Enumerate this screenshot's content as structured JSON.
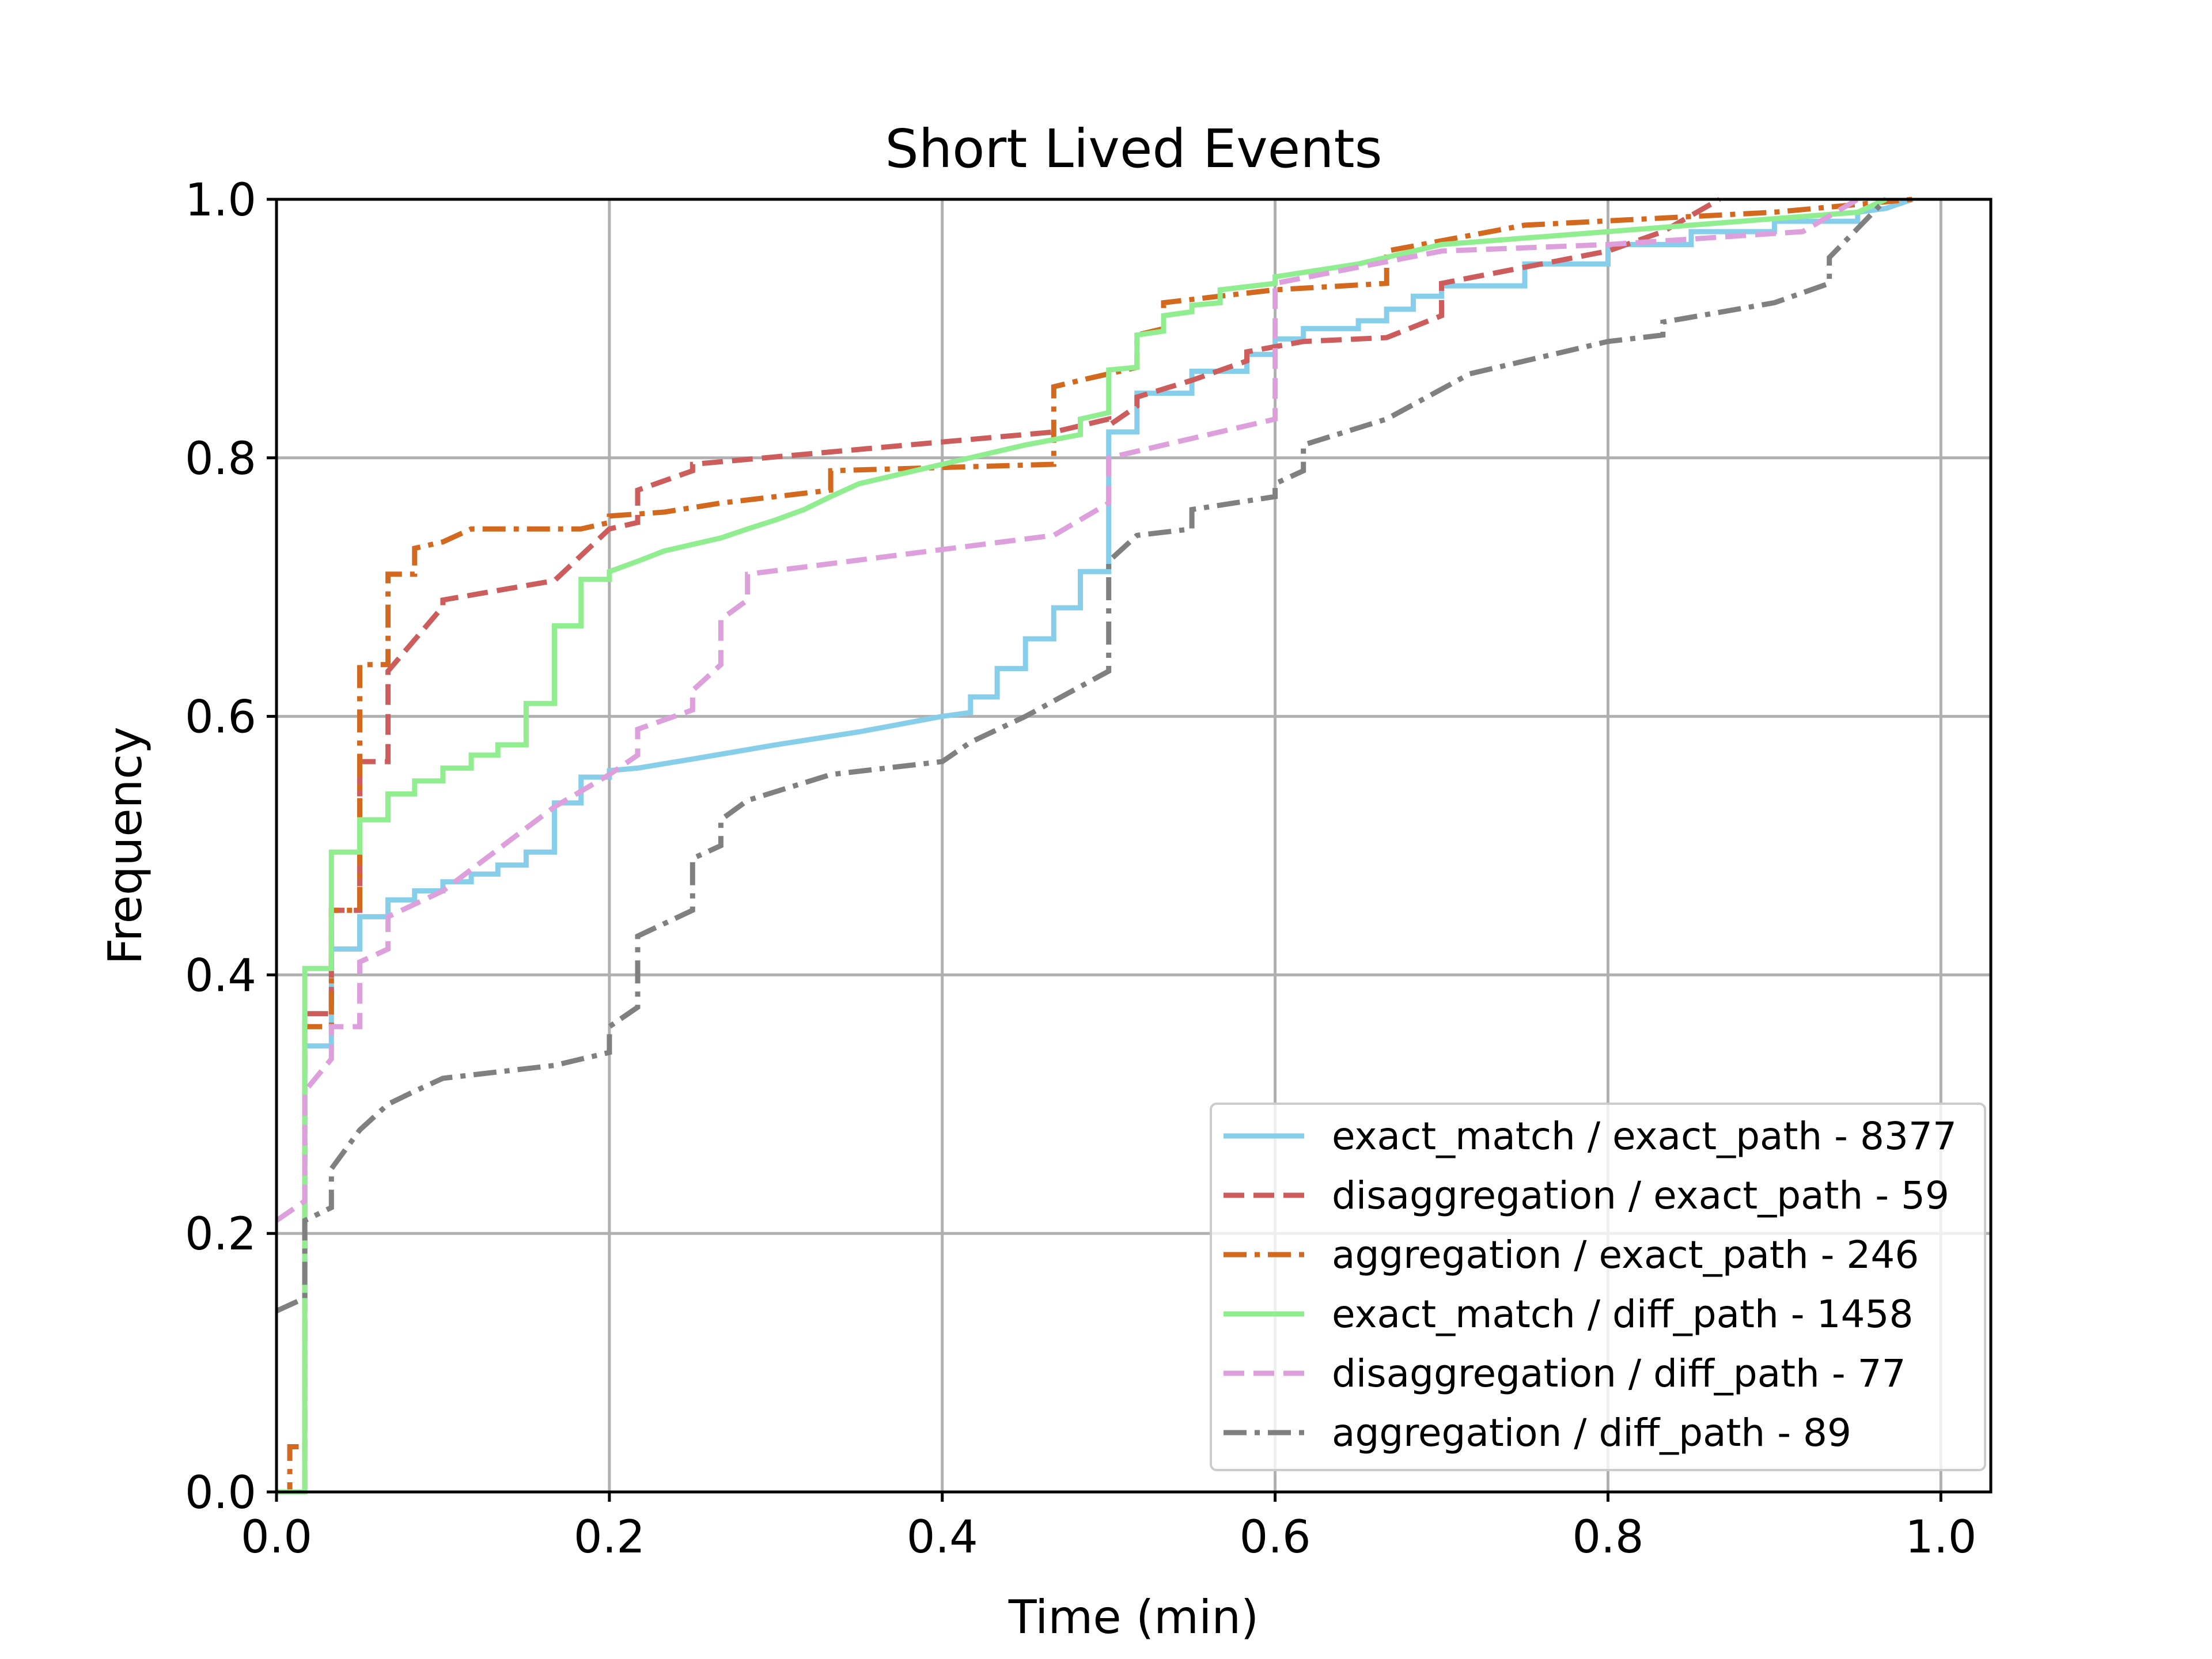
{
  "chart_data": {
    "type": "line",
    "title": "Short Lived Events",
    "xlabel": "Time (min)",
    "ylabel": "Frequency",
    "xlim": [
      0.0,
      1.03
    ],
    "ylim": [
      0.0,
      1.0
    ],
    "xticks": [
      0.0,
      0.2,
      0.4,
      0.6,
      0.8,
      1.0
    ],
    "xtick_labels": [
      "0.0",
      "0.2",
      "0.4",
      "0.6",
      "0.8",
      "1.0"
    ],
    "yticks": [
      0.0,
      0.2,
      0.4,
      0.6,
      0.8,
      1.0
    ],
    "ytick_labels": [
      "0.0",
      "0.2",
      "0.4",
      "0.6",
      "0.8",
      "1.0"
    ],
    "grid": true,
    "legend_position": "lower-right",
    "series": [
      {
        "name": "exact_match / exact_path - 8377",
        "color": "#87ceeb",
        "dash": "solid",
        "x": [
          0.0,
          0.017,
          0.017,
          0.033,
          0.033,
          0.05,
          0.05,
          0.067,
          0.067,
          0.083,
          0.083,
          0.1,
          0.1,
          0.117,
          0.117,
          0.133,
          0.133,
          0.15,
          0.15,
          0.167,
          0.167,
          0.183,
          0.183,
          0.2,
          0.2,
          0.217,
          0.25,
          0.3,
          0.35,
          0.4,
          0.417,
          0.417,
          0.433,
          0.433,
          0.45,
          0.45,
          0.467,
          0.467,
          0.483,
          0.483,
          0.5,
          0.5,
          0.517,
          0.517,
          0.55,
          0.55,
          0.583,
          0.583,
          0.6,
          0.6,
          0.617,
          0.617,
          0.65,
          0.65,
          0.667,
          0.667,
          0.683,
          0.683,
          0.7,
          0.7,
          0.75,
          0.75,
          0.8,
          0.8,
          0.85,
          0.85,
          0.9,
          0.9,
          0.95,
          0.95,
          0.967,
          0.983
        ],
        "y": [
          0.0,
          0.0,
          0.345,
          0.345,
          0.42,
          0.42,
          0.445,
          0.445,
          0.458,
          0.458,
          0.465,
          0.465,
          0.472,
          0.472,
          0.478,
          0.478,
          0.485,
          0.485,
          0.495,
          0.495,
          0.533,
          0.533,
          0.553,
          0.553,
          0.558,
          0.56,
          0.567,
          0.578,
          0.588,
          0.6,
          0.603,
          0.615,
          0.615,
          0.637,
          0.637,
          0.66,
          0.66,
          0.684,
          0.684,
          0.712,
          0.712,
          0.82,
          0.82,
          0.85,
          0.85,
          0.867,
          0.867,
          0.88,
          0.88,
          0.892,
          0.892,
          0.9,
          0.9,
          0.906,
          0.906,
          0.915,
          0.915,
          0.925,
          0.925,
          0.933,
          0.933,
          0.95,
          0.95,
          0.965,
          0.965,
          0.975,
          0.975,
          0.983,
          0.983,
          0.99,
          0.993,
          1.0
        ]
      },
      {
        "name": "disaggregation / exact_path - 59",
        "color": "#cd5c5c",
        "dash": "dashed",
        "x": [
          0.0,
          0.017,
          0.017,
          0.033,
          0.033,
          0.05,
          0.05,
          0.067,
          0.067,
          0.1,
          0.1,
          0.167,
          0.2,
          0.217,
          0.217,
          0.25,
          0.25,
          0.467,
          0.5,
          0.5,
          0.517,
          0.517,
          0.55,
          0.583,
          0.583,
          0.617,
          0.667,
          0.7,
          0.7,
          0.8,
          0.833,
          0.867
        ],
        "y": [
          0.0,
          0.0,
          0.37,
          0.37,
          0.45,
          0.45,
          0.565,
          0.565,
          0.635,
          0.685,
          0.69,
          0.705,
          0.745,
          0.75,
          0.775,
          0.79,
          0.795,
          0.82,
          0.83,
          0.825,
          0.84,
          0.847,
          0.86,
          0.875,
          0.882,
          0.89,
          0.893,
          0.91,
          0.935,
          0.96,
          0.975,
          1.0
        ]
      },
      {
        "name": "aggregation / exact_path - 246",
        "color": "#d2691e",
        "dash": "dashdot",
        "x": [
          0.0,
          0.008,
          0.008,
          0.017,
          0.017,
          0.033,
          0.033,
          0.05,
          0.05,
          0.067,
          0.067,
          0.083,
          0.083,
          0.1,
          0.117,
          0.183,
          0.2,
          0.2,
          0.233,
          0.267,
          0.333,
          0.333,
          0.467,
          0.467,
          0.483,
          0.483,
          0.517,
          0.517,
          0.533,
          0.533,
          0.6,
          0.667,
          0.667,
          0.75,
          0.9,
          0.983
        ],
        "y": [
          0.0,
          0.0,
          0.035,
          0.035,
          0.36,
          0.36,
          0.45,
          0.45,
          0.64,
          0.64,
          0.71,
          0.71,
          0.73,
          0.735,
          0.745,
          0.745,
          0.75,
          0.755,
          0.758,
          0.765,
          0.775,
          0.79,
          0.795,
          0.855,
          0.86,
          0.86,
          0.87,
          0.895,
          0.9,
          0.92,
          0.93,
          0.935,
          0.96,
          0.98,
          0.99,
          1.0
        ]
      },
      {
        "name": "exact_match / diff_path - 1458",
        "color": "#90ee90",
        "dash": "solid",
        "x": [
          0.0,
          0.017,
          0.017,
          0.033,
          0.033,
          0.05,
          0.05,
          0.067,
          0.067,
          0.083,
          0.083,
          0.1,
          0.1,
          0.117,
          0.117,
          0.133,
          0.133,
          0.15,
          0.15,
          0.167,
          0.167,
          0.183,
          0.183,
          0.2,
          0.2,
          0.217,
          0.233,
          0.25,
          0.267,
          0.283,
          0.3,
          0.317,
          0.333,
          0.35,
          0.4,
          0.45,
          0.483,
          0.483,
          0.5,
          0.5,
          0.517,
          0.517,
          0.533,
          0.533,
          0.55,
          0.55,
          0.567,
          0.567,
          0.6,
          0.6,
          0.65,
          0.7,
          0.8,
          0.95,
          0.967
        ],
        "y": [
          0.0,
          0.0,
          0.405,
          0.405,
          0.495,
          0.495,
          0.52,
          0.52,
          0.54,
          0.54,
          0.55,
          0.55,
          0.56,
          0.56,
          0.57,
          0.57,
          0.578,
          0.578,
          0.61,
          0.61,
          0.67,
          0.67,
          0.706,
          0.706,
          0.712,
          0.72,
          0.728,
          0.733,
          0.738,
          0.745,
          0.752,
          0.76,
          0.77,
          0.78,
          0.795,
          0.81,
          0.818,
          0.83,
          0.835,
          0.868,
          0.87,
          0.895,
          0.898,
          0.91,
          0.913,
          0.918,
          0.92,
          0.93,
          0.935,
          0.94,
          0.95,
          0.965,
          0.975,
          0.99,
          1.0
        ]
      },
      {
        "name": "disaggregation / diff_path - 77",
        "color": "#dda0dd",
        "dash": "dashed",
        "x": [
          0.0,
          0.017,
          0.017,
          0.033,
          0.033,
          0.05,
          0.05,
          0.067,
          0.067,
          0.1,
          0.167,
          0.2,
          0.217,
          0.217,
          0.25,
          0.25,
          0.267,
          0.267,
          0.283,
          0.283,
          0.467,
          0.5,
          0.5,
          0.55,
          0.6,
          0.6,
          0.7,
          0.8,
          0.917,
          0.95
        ],
        "y": [
          0.21,
          0.225,
          0.31,
          0.335,
          0.36,
          0.36,
          0.41,
          0.42,
          0.445,
          0.465,
          0.53,
          0.555,
          0.57,
          0.59,
          0.605,
          0.62,
          0.64,
          0.675,
          0.69,
          0.71,
          0.74,
          0.765,
          0.8,
          0.815,
          0.83,
          0.935,
          0.96,
          0.965,
          0.975,
          1.0
        ]
      },
      {
        "name": "aggregation / diff_path - 89",
        "color": "#808080",
        "dash": "dashdot",
        "x": [
          0.0,
          0.017,
          0.017,
          0.033,
          0.033,
          0.05,
          0.067,
          0.083,
          0.1,
          0.167,
          0.2,
          0.2,
          0.217,
          0.217,
          0.25,
          0.25,
          0.267,
          0.267,
          0.283,
          0.333,
          0.4,
          0.417,
          0.45,
          0.5,
          0.5,
          0.517,
          0.55,
          0.55,
          0.6,
          0.6,
          0.617,
          0.617,
          0.667,
          0.717,
          0.8,
          0.833,
          0.833,
          0.9,
          0.933,
          0.933,
          0.967
        ],
        "y": [
          0.14,
          0.15,
          0.21,
          0.22,
          0.25,
          0.28,
          0.3,
          0.31,
          0.32,
          0.33,
          0.34,
          0.36,
          0.375,
          0.43,
          0.45,
          0.49,
          0.5,
          0.52,
          0.535,
          0.555,
          0.565,
          0.58,
          0.6,
          0.635,
          0.72,
          0.74,
          0.745,
          0.76,
          0.77,
          0.78,
          0.79,
          0.81,
          0.83,
          0.865,
          0.89,
          0.895,
          0.905,
          0.92,
          0.935,
          0.955,
          1.0
        ]
      }
    ]
  }
}
